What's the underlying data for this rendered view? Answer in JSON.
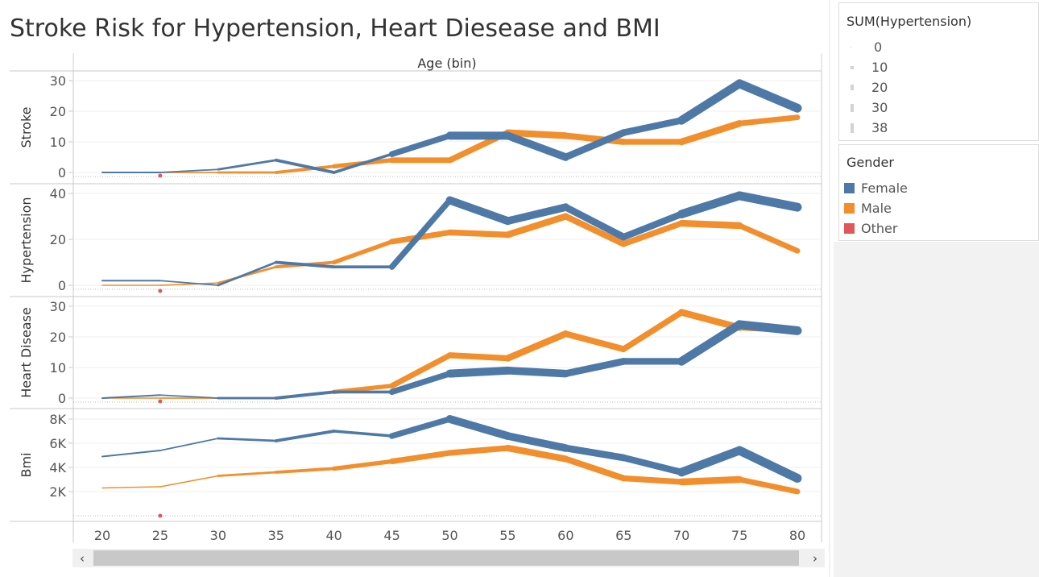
{
  "title": "Stroke Risk for Hypertension, Heart Diesease and BMI",
  "colors": {
    "Female": "#4e79a7",
    "Male": "#f28e2b",
    "Other": "#e15759"
  },
  "size_legend": {
    "title": "SUM(Hypertension)",
    "values": [
      "0",
      "10",
      "20",
      "30",
      "38"
    ]
  },
  "color_legend": {
    "title": "Gender",
    "items": [
      {
        "label": "Female",
        "color": "#4e79a7"
      },
      {
        "label": "Male",
        "color": "#f28e2b"
      },
      {
        "label": "Other",
        "color": "#e15759"
      }
    ]
  },
  "chart_data": {
    "type": "line",
    "column_header": "Age (bin)",
    "x": [
      20,
      25,
      30,
      35,
      40,
      45,
      50,
      55,
      60,
      65,
      70,
      75,
      80
    ],
    "x_tick_labels": [
      "20",
      "25",
      "30",
      "35",
      "40",
      "45",
      "50",
      "55",
      "60",
      "65",
      "70",
      "75",
      "80"
    ],
    "size_encoding": "SUM(Hypertension)",
    "panels": [
      {
        "ylabel": "Stroke",
        "ylim": [
          -1,
          33
        ],
        "ticks": [
          0,
          10,
          20,
          30
        ],
        "tick_labels": [
          "0",
          "10",
          "20",
          "30"
        ],
        "series": [
          {
            "name": "Female",
            "values": [
              0,
              0,
              1,
              4,
              0,
              6,
              12,
              12,
              5,
              13,
              17,
              29,
              21
            ]
          },
          {
            "name": "Male",
            "values": [
              0,
              0,
              0,
              0,
              2,
              4,
              4,
              13,
              12,
              10,
              10,
              16,
              18
            ]
          },
          {
            "name": "Other",
            "values": [
              null,
              0,
              null,
              null,
              null,
              null,
              null,
              null,
              null,
              null,
              null,
              null,
              null
            ]
          }
        ]
      },
      {
        "ylabel": "Hypertension",
        "ylim": [
          -1,
          43
        ],
        "ticks": [
          0,
          20,
          40
        ],
        "tick_labels": [
          "0",
          "20",
          "40"
        ],
        "series": [
          {
            "name": "Female",
            "values": [
              2,
              2,
              0,
              10,
              8,
              8,
              37,
              28,
              34,
              21,
              31,
              39,
              34
            ]
          },
          {
            "name": "Male",
            "values": [
              0,
              0,
              1,
              8,
              10,
              19,
              23,
              22,
              30,
              18,
              27,
              26,
              15
            ]
          },
          {
            "name": "Other",
            "values": [
              null,
              0,
              null,
              null,
              null,
              null,
              null,
              null,
              null,
              null,
              null,
              null,
              null
            ]
          }
        ]
      },
      {
        "ylabel": "Heart Disease",
        "ylim": [
          -1,
          32
        ],
        "ticks": [
          0,
          10,
          20,
          30
        ],
        "tick_labels": [
          "0",
          "10",
          "20",
          "30"
        ],
        "series": [
          {
            "name": "Female",
            "values": [
              0,
              1,
              0,
              0,
              2,
              2,
              8,
              9,
              8,
              12,
              12,
              24,
              22
            ]
          },
          {
            "name": "Male",
            "values": [
              0,
              0,
              0,
              0,
              2,
              4,
              14,
              13,
              21,
              16,
              28,
              23,
              22
            ]
          },
          {
            "name": "Other",
            "values": [
              null,
              0,
              null,
              null,
              null,
              null,
              null,
              null,
              null,
              null,
              null,
              null,
              null
            ]
          }
        ]
      },
      {
        "ylabel": "Bmi",
        "ylim": [
          0,
          8700
        ],
        "ticks": [
          2000,
          4000,
          6000,
          8000
        ],
        "tick_labels": [
          "2K",
          "4K",
          "6K",
          "8K"
        ],
        "series": [
          {
            "name": "Female",
            "values": [
              4900,
              5400,
              6400,
              6200,
              7000,
              6600,
              8000,
              6600,
              5600,
              4800,
              3600,
              5400,
              3100
            ]
          },
          {
            "name": "Male",
            "values": [
              2300,
              2400,
              3300,
              3600,
              3900,
              4500,
              5200,
              5600,
              4700,
              3100,
              2800,
              3000,
              2000
            ]
          },
          {
            "name": "Other",
            "values": [
              null,
              30,
              null,
              null,
              null,
              null,
              null,
              null,
              null,
              null,
              null,
              null,
              null
            ]
          }
        ]
      }
    ],
    "hypertension_sum": {
      "Female": [
        2,
        2,
        0,
        10,
        8,
        8,
        37,
        28,
        34,
        21,
        31,
        39,
        34
      ],
      "Male": [
        0,
        0,
        1,
        8,
        10,
        19,
        23,
        22,
        30,
        18,
        27,
        26,
        15
      ]
    },
    "grid": true,
    "legend_placement": "right"
  },
  "scrollbar": {
    "left_arrow": "‹",
    "right_arrow": "›"
  }
}
